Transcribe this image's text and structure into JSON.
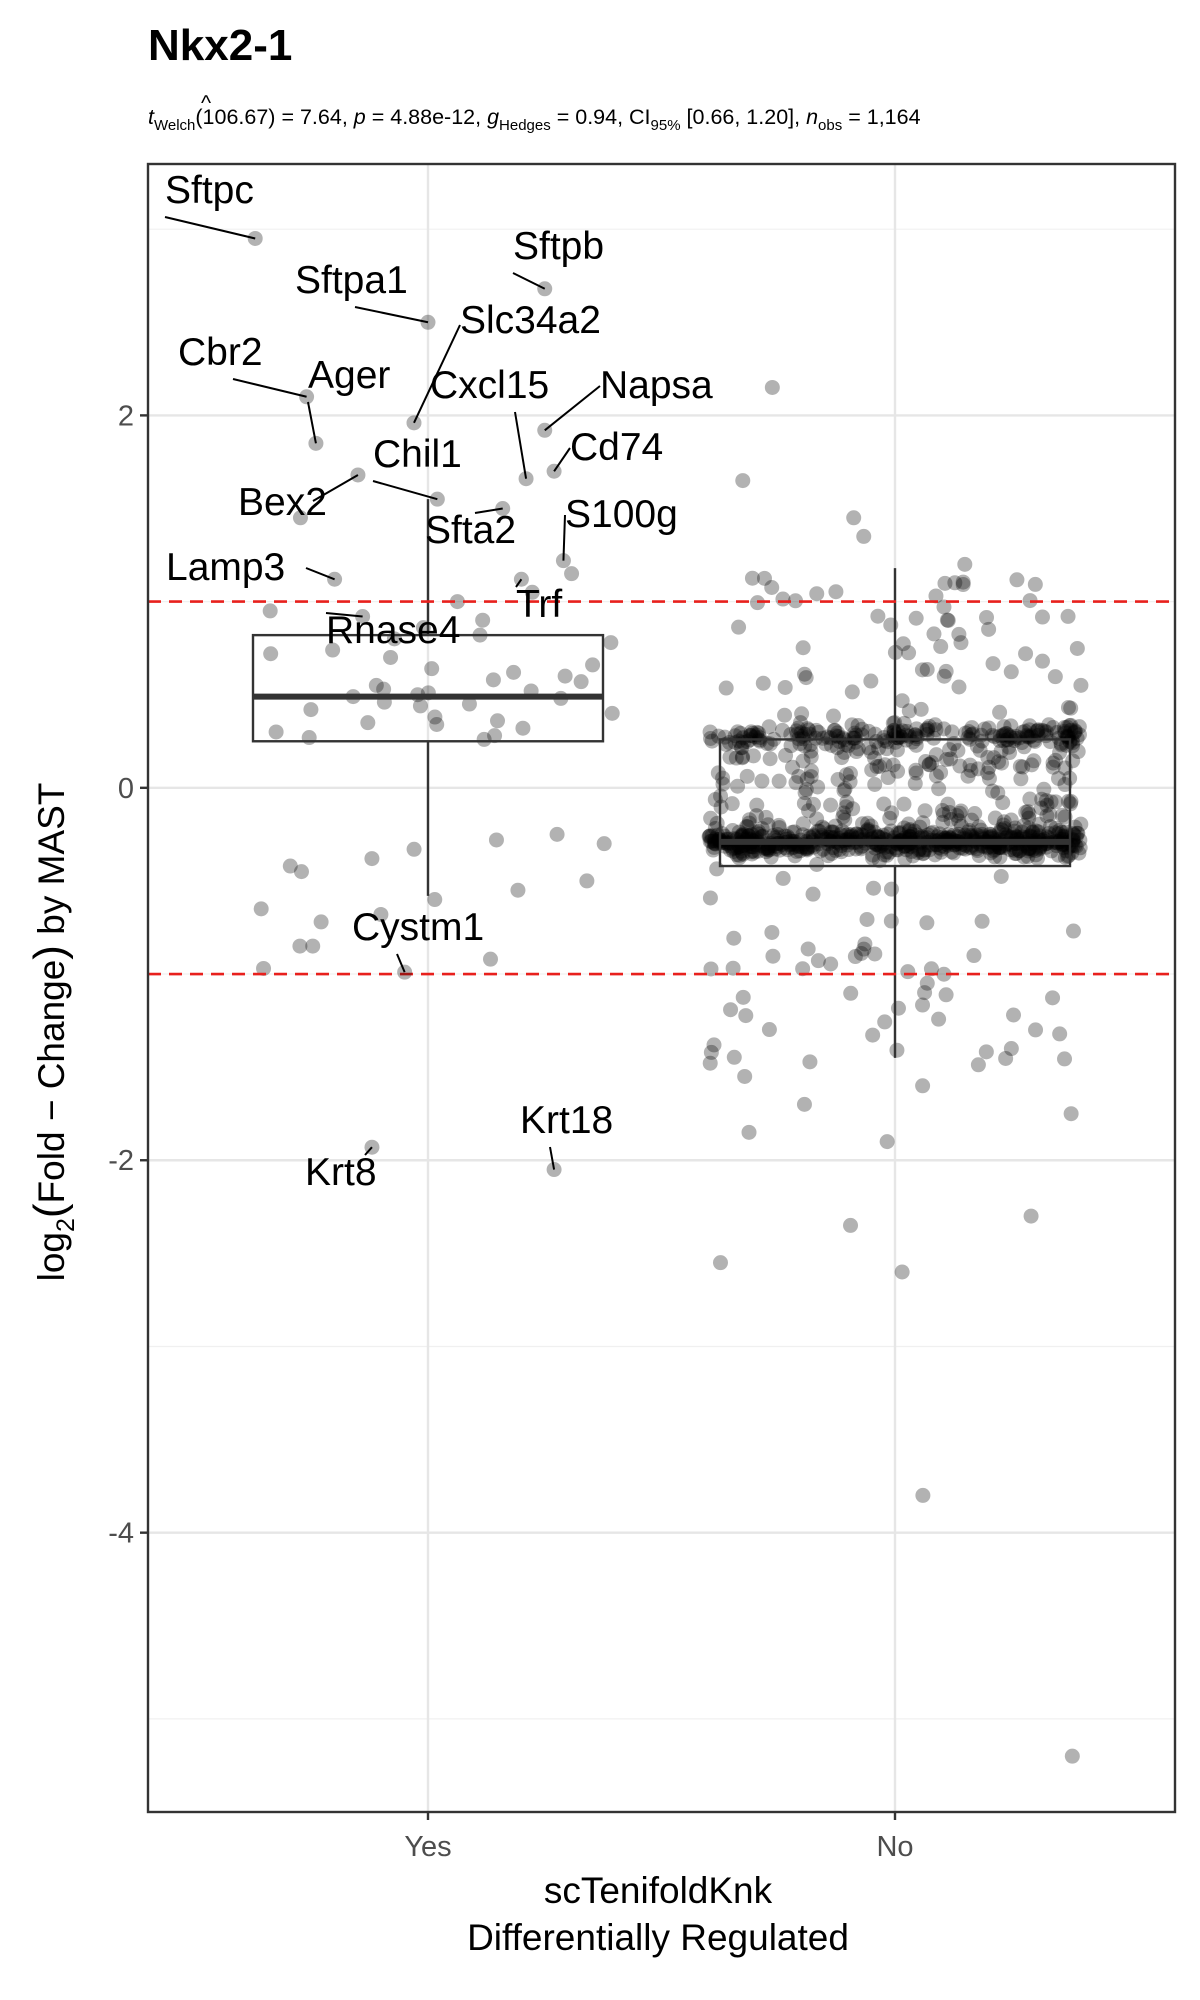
{
  "chart_data": {
    "type": "scatter",
    "title": "Nkx2-1",
    "stats": {
      "t_symbol": "t",
      "t_sub": "Welch",
      "df": "(106.67) = 7.64, ",
      "p_symbol": "p",
      "p_value": " = 4.88e-12, ",
      "g_symbol": "g",
      "g_hat": "^",
      "g_sub": "Hedges",
      "g_value": " = 0.94, CI",
      "ci_sub": "95%",
      "ci_value": " [0.66, 1.20], ",
      "n_symbol": "n",
      "n_sub": "obs",
      "n_value": " = 1,164"
    },
    "xlabel_line1": "scTenifoldKnk",
    "xlabel_line2": "Differentially Regulated",
    "ylabel_parts": {
      "log": "log",
      "sub": "2",
      "open": "(",
      "text": "Fold − Change",
      "close": ")",
      "rest": " by MAST"
    },
    "categories": [
      "Yes",
      "No"
    ],
    "ylim": [
      -5.5,
      3.35
    ],
    "yticks": [
      "-4",
      "-2",
      "0",
      "2"
    ],
    "ytick_values": [
      -4,
      -2,
      0,
      2
    ],
    "threshold_lines": [
      1,
      -1
    ],
    "threshold_color": "#e8201d",
    "point_color": "#000000",
    "box_color": "#333333",
    "grid": true,
    "boxplots": [
      {
        "category": "Yes",
        "whisker_low": -0.58,
        "q1": 0.25,
        "median": 0.49,
        "q3": 0.82,
        "whisker_high": 1.55
      },
      {
        "category": "No",
        "whisker_low": -1.45,
        "q1": -0.42,
        "median": -0.29,
        "q3": 0.26,
        "whisker_high": 1.18
      }
    ],
    "labeled_genes": [
      {
        "gene": "Sftpc",
        "x": 0.63,
        "y": 2.95
      },
      {
        "gene": "Sftpb",
        "x": 1.25,
        "y": 2.68
      },
      {
        "gene": "Sftpa1",
        "x": 1.0,
        "y": 2.5
      },
      {
        "gene": "Slc34a2",
        "x": 0.97,
        "y": 1.96
      },
      {
        "gene": "Cbr2",
        "x": 0.74,
        "y": 2.1
      },
      {
        "gene": "Ager",
        "x": 0.76,
        "y": 1.85
      },
      {
        "gene": "Napsa",
        "x": 1.25,
        "y": 1.92
      },
      {
        "gene": "Cxcl15",
        "x": 1.21,
        "y": 1.66
      },
      {
        "gene": "Cd74",
        "x": 1.27,
        "y": 1.7
      },
      {
        "gene": "Chil1",
        "x": 1.02,
        "y": 1.55
      },
      {
        "gene": "Bex2",
        "x": 0.85,
        "y": 1.68
      },
      {
        "gene": "S100g",
        "x": 1.29,
        "y": 1.22
      },
      {
        "gene": "Sfta2",
        "x": 1.16,
        "y": 1.5
      },
      {
        "gene": "Lamp3",
        "x": 0.8,
        "y": 1.12
      },
      {
        "gene": "Trf",
        "x": 1.2,
        "y": 1.12
      },
      {
        "gene": "Rnase4",
        "x": 0.86,
        "y": 0.92
      },
      {
        "gene": "Cystm1",
        "x": 0.95,
        "y": -0.99
      },
      {
        "gene": "Krt8",
        "x": 0.88,
        "y": -1.93
      },
      {
        "gene": "Krt18",
        "x": 1.27,
        "y": -2.05
      }
    ]
  }
}
